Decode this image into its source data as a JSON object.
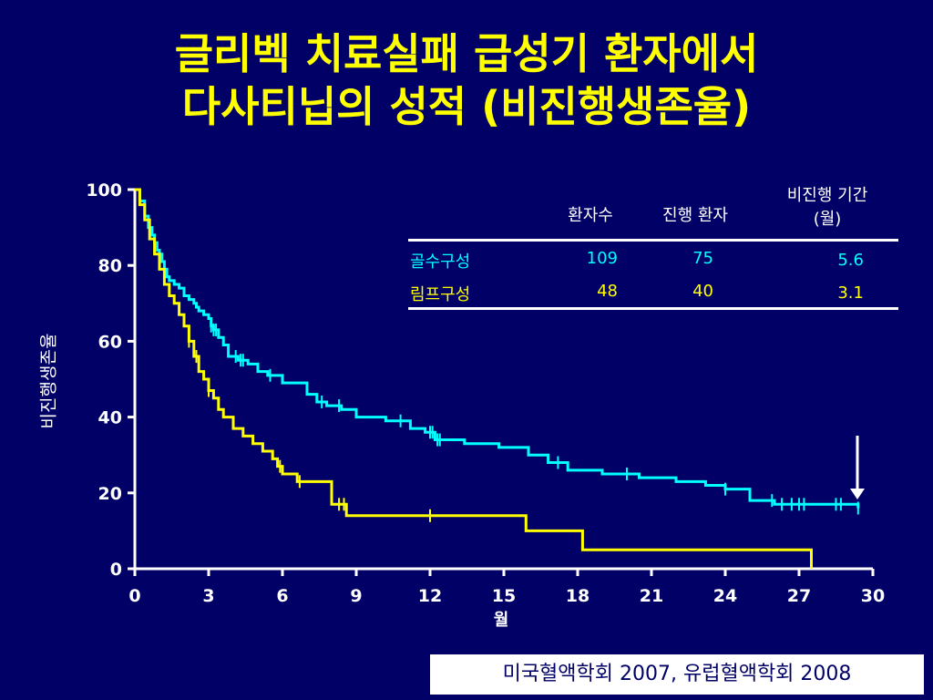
{
  "slide": {
    "title_line1": "글리벡 치료실패 급성기 환자에서",
    "title_line2": "다사티닙의 성적 (비진행생존율)",
    "citation": "미국혈액학회 2007, 유럽혈액학회 2008"
  },
  "table": {
    "headers": [
      "환자수",
      "진행 환자",
      "비진행 기간",
      "(월)"
    ],
    "rows": [
      {
        "name": "골수구성",
        "patients": "109",
        "progressed": "75",
        "pfs": "5.6",
        "color": "#00ffff"
      },
      {
        "name": "림프구성",
        "patients": "48",
        "progressed": "40",
        "pfs": "3.1",
        "color": "#ffff00"
      }
    ]
  },
  "chart_data": {
    "type": "line",
    "title": "",
    "xlabel": "월",
    "ylabel": "비진행생존율",
    "xlim": [
      0,
      30
    ],
    "ylim": [
      0,
      100
    ],
    "xticks": [
      0,
      3,
      6,
      9,
      12,
      15,
      18,
      21,
      24,
      27,
      30
    ],
    "yticks": [
      0,
      20,
      40,
      60,
      80,
      100
    ],
    "step": true,
    "series": [
      {
        "name": "골수구성",
        "color": "#00ffff",
        "x": [
          0,
          0.2,
          0.4,
          0.55,
          0.7,
          0.8,
          0.9,
          1.0,
          1.1,
          1.2,
          1.3,
          1.4,
          1.6,
          1.8,
          2.0,
          2.2,
          2.4,
          2.5,
          2.6,
          2.8,
          3.0,
          3.1,
          3.2,
          3.4,
          3.6,
          3.8,
          4.2,
          4.6,
          5.0,
          5.4,
          6.0,
          7.0,
          7.4,
          7.8,
          8.4,
          9.0,
          10.2,
          11.2,
          11.8,
          12.2,
          13.4,
          14.8,
          16.0,
          16.8,
          17.6,
          19.0,
          20.5,
          22.0,
          23.2,
          24.0,
          25.0,
          26.0,
          29.4
        ],
        "y": [
          100,
          97,
          93,
          90,
          88,
          86,
          84,
          83,
          81,
          79,
          77,
          76,
          75,
          74,
          72,
          71,
          70,
          69,
          68,
          67,
          66,
          64,
          63,
          61,
          59,
          56,
          55,
          54,
          52,
          51,
          49,
          46,
          44,
          43,
          42,
          40,
          39,
          37,
          36,
          34,
          33,
          32,
          30,
          28,
          26,
          25,
          24,
          23,
          22,
          21,
          18,
          17,
          16
        ],
        "censor_x": [
          3.1,
          3.2,
          3.3,
          4.1,
          4.3,
          4.4,
          5.5,
          7.6,
          8.3,
          10.8,
          12.0,
          12.1,
          12.3,
          12.4,
          17.2,
          20.0,
          24.0,
          25.9,
          26.3,
          26.7,
          27.0,
          27.2,
          28.5,
          28.7,
          29.4
        ]
      },
      {
        "name": "림프구성",
        "color": "#ffff00",
        "x": [
          0,
          0.2,
          0.4,
          0.6,
          0.8,
          1.0,
          1.2,
          1.4,
          1.6,
          1.8,
          2.0,
          2.2,
          2.4,
          2.6,
          2.8,
          3.0,
          3.2,
          3.4,
          3.6,
          4.0,
          4.4,
          4.8,
          5.2,
          5.6,
          5.8,
          6.0,
          6.6,
          8.0,
          8.6,
          15.9,
          18.2,
          27.5
        ],
        "y": [
          100,
          96,
          92,
          87,
          83,
          79,
          75,
          72,
          70,
          67,
          64,
          60,
          56,
          52,
          50,
          47,
          45,
          42,
          40,
          37,
          35,
          33,
          31,
          29,
          27,
          25,
          23,
          17,
          14,
          10,
          5,
          0
        ],
        "censor_x": [
          2.2,
          2.5,
          3.0,
          5.9,
          6.7,
          8.3,
          8.5,
          12.0
        ]
      }
    ]
  }
}
